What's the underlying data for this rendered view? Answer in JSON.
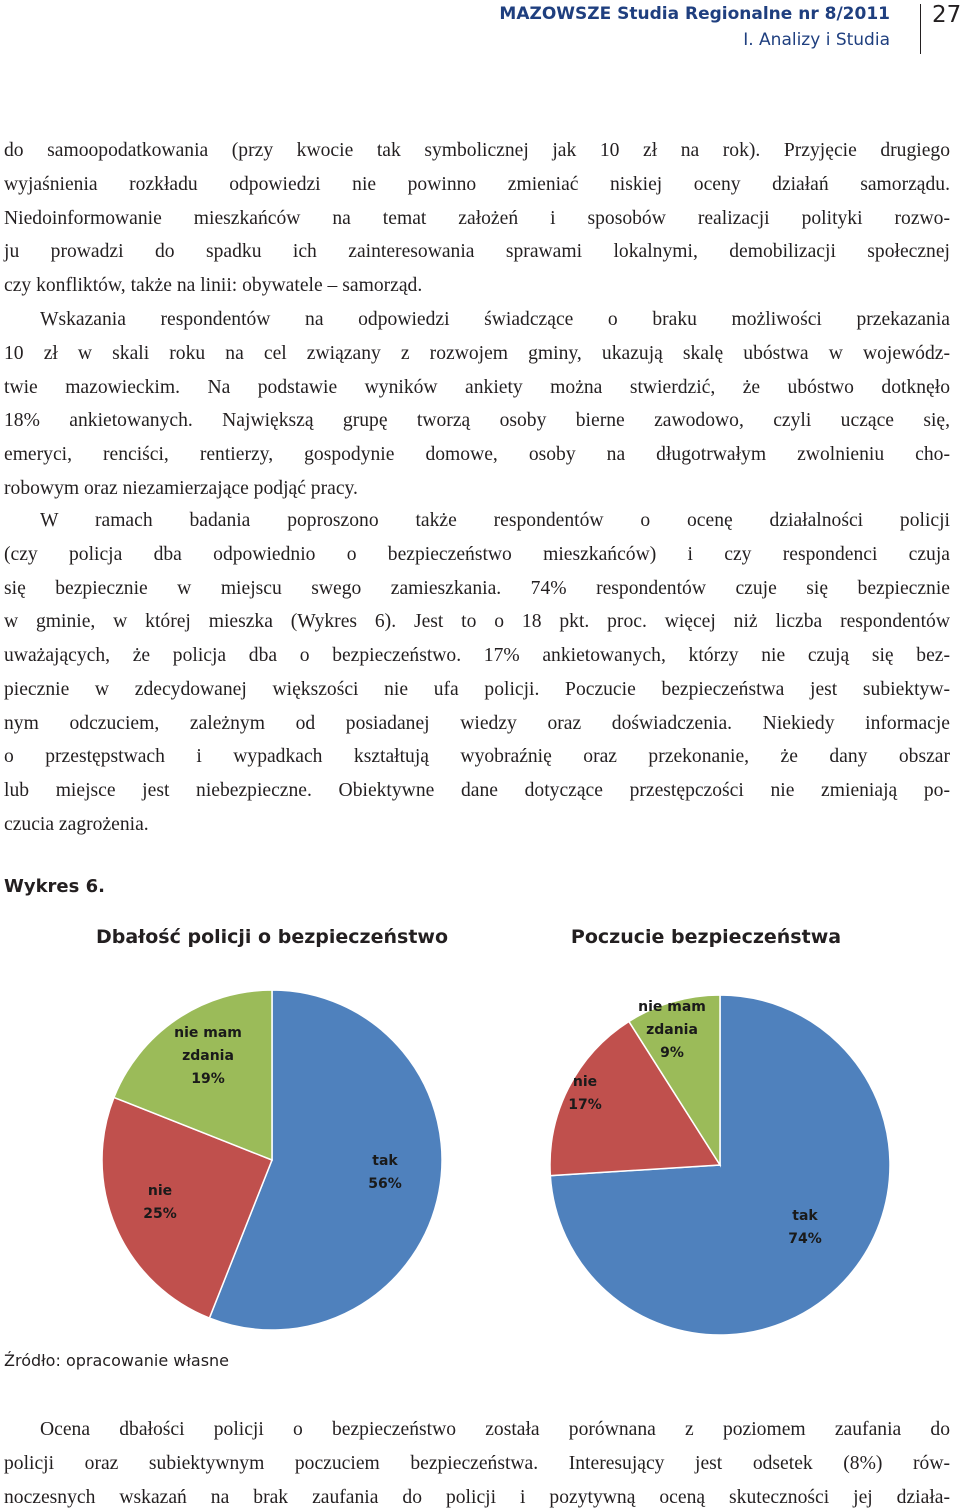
{
  "header": {
    "journal": "MAZOWSZE Studia Regionalne nr 8/2011",
    "section": "I. Analizy i Studia",
    "page_number": "27"
  },
  "paragraphs": [
    {
      "indent": false,
      "lines": [
        "do samoopodatkowania (przy kwocie tak symbolicznej jak 10 zł na rok). Przyjęcie drugiego",
        "wyjaśnienia rozkładu odpowiedzi nie powinno zmieniać niskiej oceny działań samorządu.",
        "Niedoinformowanie mieszkańców na temat założeń i sposobów realizacji polityki rozwo-",
        "ju prowadzi do spadku ich zainteresowania sprawami lokalnymi, demobilizacji społecznej",
        "czy konfliktów, także na linii: obywatele – samorząd."
      ]
    },
    {
      "indent": true,
      "lines": [
        "Wskazania respondentów na odpowiedzi świadczące o braku możliwości przekazania",
        "10 zł w skali roku na cel związany z rozwojem gminy, ukazują skalę ubóstwa w wojewódz-",
        "twie mazowieckim. Na podstawie wyników ankiety można stwierdzić, że ubóstwo dotknęło",
        "18% ankietowanych. Największą grupę tworzą osoby bierne zawodowo, czyli uczące się,",
        "emeryci, renciści, rentierzy, gospodynie domowe, osoby na długotrwałym zwolnieniu cho-",
        "robowym oraz niezamierzające podjąć pracy."
      ]
    },
    {
      "indent": true,
      "lines": [
        "W ramach badania poproszono także respondentów o ocenę działalności policji",
        "(czy policja dba odpowiednio o bezpieczeństwo mieszkańców) i czy respondenci czuja",
        "się bezpiecznie w miejscu swego zamieszkania. 74% respondentów czuje się bezpiecznie",
        "w gminie, w której mieszka (Wykres 6). Jest to o 18 pkt. proc. więcej niż liczba respondentów",
        "uważających, że policja dba o bezpieczeństwo. 17% ankietowanych, którzy nie czują się bez-",
        "piecznie w zdecydowanej większości nie ufa policji. Poczucie bezpieczeństwa jest subiektyw-",
        "nym odczuciem, zależnym od posiadanej wiedzy oraz doświadczenia. Niekiedy informacje",
        "o przestępstwach i wypadkach kształtują wyobraźnię oraz przekonanie, że dany obszar",
        "lub miejsce jest niebezpieczne. Obiektywne dane dotyczące przestępczości nie zmieniają po-",
        "czucia zagrożenia."
      ]
    }
  ],
  "figure_label": "Wykres 6.",
  "chart_data": [
    {
      "type": "pie",
      "title": "Dbałość policji o bezpieczeństwo",
      "categories": [
        "tak",
        "nie",
        "nie mam zdania"
      ],
      "values": [
        56,
        25,
        19
      ],
      "value_labels": [
        "56%",
        "25%",
        "19%"
      ],
      "colors": [
        "#4f81bd",
        "#c0504d",
        "#9bbb59"
      ]
    },
    {
      "type": "pie",
      "title": "Poczucie bezpieczeństwa",
      "categories": [
        "tak",
        "nie",
        "nie mam zdania"
      ],
      "values": [
        74,
        17,
        9
      ],
      "value_labels": [
        "74%",
        "17%",
        "9%"
      ],
      "colors": [
        "#4f81bd",
        "#c0504d",
        "#9bbb59"
      ]
    }
  ],
  "source": "Źródło: opracowanie własne",
  "closing_paragraph": {
    "indent": true,
    "lines": [
      "Ocena dbałości policji o bezpieczeństwo została porównana z poziomem zaufania do",
      "policji oraz subiektywnym poczuciem bezpieczeństwa. Interesujący jest odsetek (8%) rów-",
      "noczesnych wskazań na brak zaufania do policji i pozytywną oceną skuteczności jej działa-"
    ]
  }
}
